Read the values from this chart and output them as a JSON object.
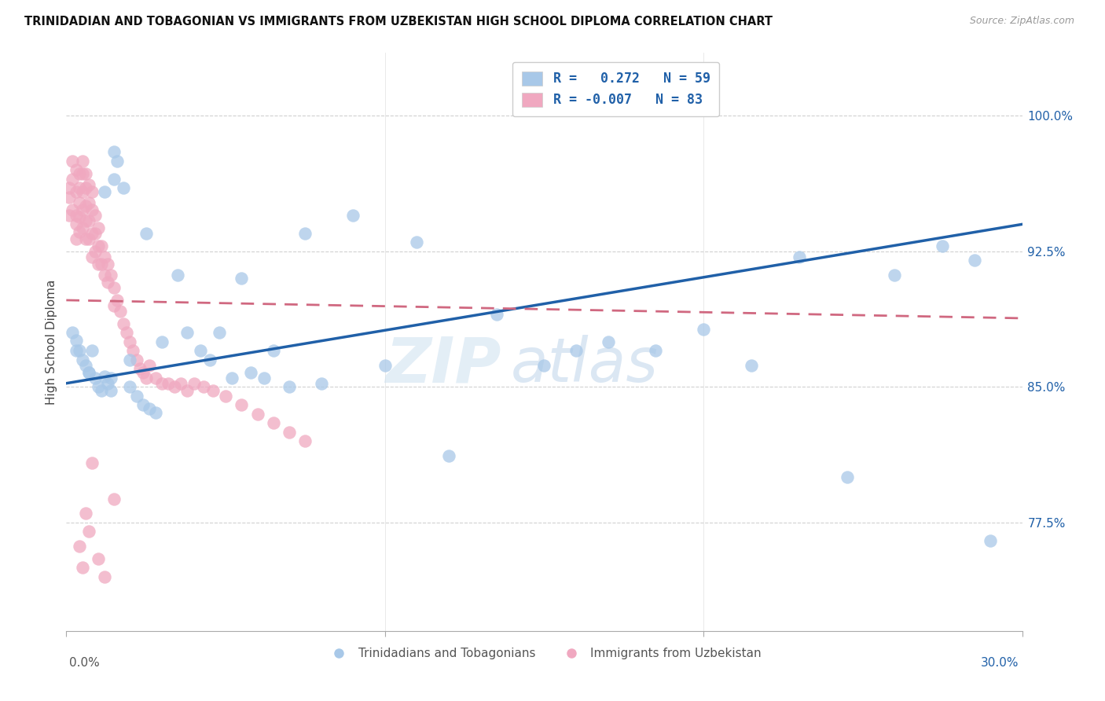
{
  "title": "TRINIDADIAN AND TOBAGONIAN VS IMMIGRANTS FROM UZBEKISTAN HIGH SCHOOL DIPLOMA CORRELATION CHART",
  "source": "Source: ZipAtlas.com",
  "ylabel": "High School Diploma",
  "yticks": [
    0.775,
    0.85,
    0.925,
    1.0
  ],
  "ytick_labels": [
    "77.5%",
    "85.0%",
    "92.5%",
    "100.0%"
  ],
  "xlim": [
    0.0,
    0.3
  ],
  "ylim": [
    0.715,
    1.035
  ],
  "blue_r": 0.272,
  "blue_n": 59,
  "pink_r": -0.007,
  "pink_n": 83,
  "blue_color": "#a8c8e8",
  "pink_color": "#f0a8c0",
  "blue_line_color": "#2060a8",
  "pink_line_color": "#d06880",
  "watermark_zip": "ZIP",
  "watermark_atlas": "atlas",
  "blue_x": [
    0.002,
    0.003,
    0.004,
    0.005,
    0.006,
    0.007,
    0.008,
    0.009,
    0.01,
    0.011,
    0.012,
    0.013,
    0.014,
    0.015,
    0.016,
    0.018,
    0.02,
    0.022,
    0.024,
    0.026,
    0.028,
    0.03,
    0.035,
    0.038,
    0.042,
    0.045,
    0.048,
    0.052,
    0.055,
    0.058,
    0.062,
    0.065,
    0.07,
    0.075,
    0.08,
    0.09,
    0.1,
    0.11,
    0.12,
    0.135,
    0.15,
    0.16,
    0.17,
    0.185,
    0.2,
    0.215,
    0.23,
    0.245,
    0.26,
    0.275,
    0.285,
    0.003,
    0.007,
    0.014,
    0.02,
    0.025,
    0.015,
    0.012,
    0.29
  ],
  "blue_y": [
    0.88,
    0.876,
    0.87,
    0.865,
    0.862,
    0.858,
    0.87,
    0.855,
    0.85,
    0.848,
    0.856,
    0.852,
    0.848,
    0.98,
    0.975,
    0.96,
    0.85,
    0.845,
    0.84,
    0.838,
    0.836,
    0.875,
    0.912,
    0.88,
    0.87,
    0.865,
    0.88,
    0.855,
    0.91,
    0.858,
    0.855,
    0.87,
    0.85,
    0.935,
    0.852,
    0.945,
    0.862,
    0.93,
    0.812,
    0.89,
    0.862,
    0.87,
    0.875,
    0.87,
    0.882,
    0.862,
    0.922,
    0.8,
    0.912,
    0.928,
    0.92,
    0.87,
    0.858,
    0.855,
    0.865,
    0.935,
    0.965,
    0.958,
    0.765
  ],
  "pink_x": [
    0.001,
    0.001,
    0.001,
    0.002,
    0.002,
    0.002,
    0.003,
    0.003,
    0.003,
    0.003,
    0.003,
    0.004,
    0.004,
    0.004,
    0.004,
    0.004,
    0.005,
    0.005,
    0.005,
    0.005,
    0.005,
    0.006,
    0.006,
    0.006,
    0.006,
    0.006,
    0.007,
    0.007,
    0.007,
    0.007,
    0.008,
    0.008,
    0.008,
    0.008,
    0.009,
    0.009,
    0.009,
    0.01,
    0.01,
    0.01,
    0.011,
    0.011,
    0.012,
    0.012,
    0.013,
    0.013,
    0.014,
    0.015,
    0.015,
    0.016,
    0.017,
    0.018,
    0.019,
    0.02,
    0.021,
    0.022,
    0.023,
    0.024,
    0.025,
    0.026,
    0.028,
    0.03,
    0.032,
    0.034,
    0.036,
    0.038,
    0.04,
    0.043,
    0.046,
    0.05,
    0.055,
    0.06,
    0.065,
    0.07,
    0.075,
    0.015,
    0.008,
    0.006,
    0.004,
    0.005,
    0.007,
    0.01,
    0.012
  ],
  "pink_y": [
    0.955,
    0.945,
    0.96,
    0.975,
    0.965,
    0.948,
    0.97,
    0.958,
    0.945,
    0.94,
    0.932,
    0.968,
    0.96,
    0.952,
    0.944,
    0.936,
    0.975,
    0.968,
    0.958,
    0.948,
    0.938,
    0.968,
    0.96,
    0.95,
    0.942,
    0.932,
    0.962,
    0.952,
    0.942,
    0.932,
    0.958,
    0.948,
    0.935,
    0.922,
    0.945,
    0.935,
    0.925,
    0.938,
    0.928,
    0.918,
    0.928,
    0.918,
    0.922,
    0.912,
    0.918,
    0.908,
    0.912,
    0.905,
    0.895,
    0.898,
    0.892,
    0.885,
    0.88,
    0.875,
    0.87,
    0.865,
    0.86,
    0.858,
    0.855,
    0.862,
    0.855,
    0.852,
    0.852,
    0.85,
    0.852,
    0.848,
    0.852,
    0.85,
    0.848,
    0.845,
    0.84,
    0.835,
    0.83,
    0.825,
    0.82,
    0.788,
    0.808,
    0.78,
    0.762,
    0.75,
    0.77,
    0.755,
    0.745
  ],
  "blue_line_y0": 0.852,
  "blue_line_y1": 0.94,
  "pink_line_y0": 0.898,
  "pink_line_y1": 0.888
}
